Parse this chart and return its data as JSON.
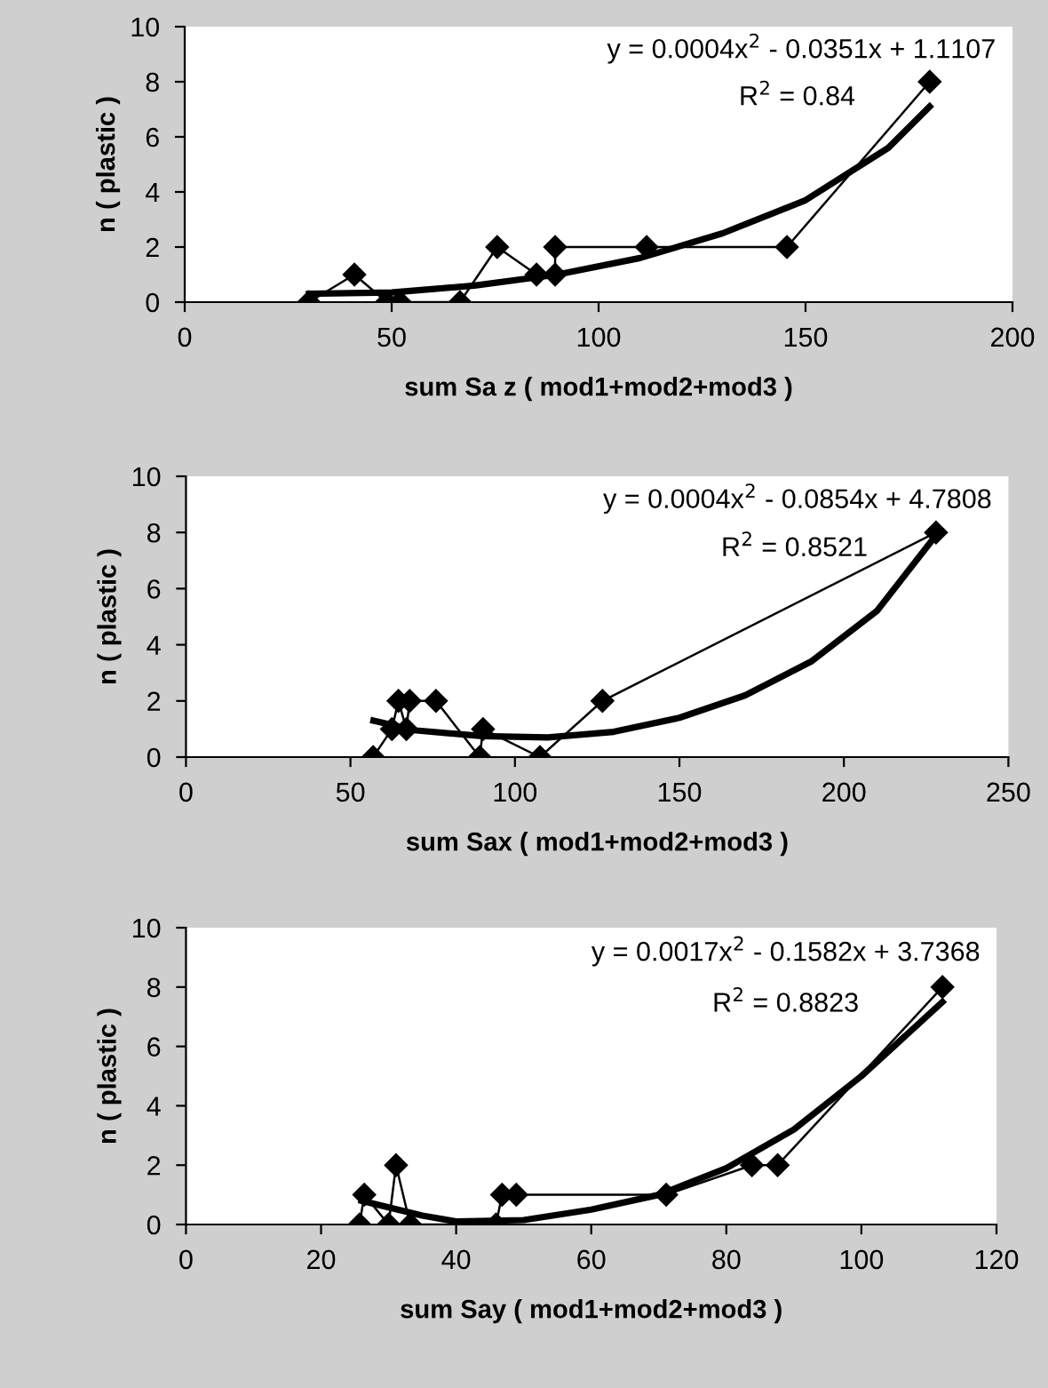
{
  "chart_data": [
    {
      "type": "line",
      "xlabel": "sum Sa z ( mod1+mod2+mod3 )",
      "ylabel": "n ( plastic )",
      "xlim": [
        0,
        200
      ],
      "xticks": [
        0,
        50,
        100,
        150,
        200
      ],
      "ylim": [
        0,
        10
      ],
      "yticks": [
        0,
        2,
        4,
        6,
        8,
        10
      ],
      "grid": false,
      "legend": false,
      "marker": "diamond",
      "line_style": "solid",
      "annotations": [
        "y = 0.0004x$^{2}$ - 0.0351x + 1.1107",
        "R$^{2}$ = 0.84"
      ],
      "series": [
        {
          "color": "#000000",
          "x": [
            30,
            41,
            48.8,
            52,
            66.5,
            75.5,
            85,
            89.5,
            89.5,
            111.6,
            145.5,
            180
          ],
          "values": [
            0,
            1,
            0,
            0,
            0,
            2,
            1,
            1,
            2,
            2,
            2,
            8
          ]
        },
        {
          "type": "line",
          "marker": "none",
          "color": "#000000",
          "x": [
            30,
            50,
            70,
            90,
            110,
            130,
            150,
            170,
            180
          ],
          "values": [
            0.3,
            0.35,
            0.6,
            1.0,
            1.6,
            2.5,
            3.7,
            5.6,
            7.1
          ]
        }
      ]
    },
    {
      "type": "line",
      "xlabel": "sum Sax ( mod1+mod2+mod3 )",
      "ylabel": "n ( plastic )",
      "xlim": [
        0,
        250
      ],
      "xticks": [
        0,
        50,
        100,
        150,
        200,
        250
      ],
      "ylim": [
        0,
        10
      ],
      "yticks": [
        0,
        2,
        4,
        6,
        8,
        10
      ],
      "grid": false,
      "legend": false,
      "marker": "diamond",
      "line_style": "solid",
      "annotations": [
        "y = 0.0004x$^{2}$ - 0.0854x + 4.7808",
        "R$^{2}$ = 0.8521"
      ],
      "series": [
        {
          "color": "#000000",
          "x": [
            56.9,
            62.6,
            64.6,
            67,
            68,
            76,
            89.3,
            90.3,
            107.6,
            126.6,
            228
          ],
          "values": [
            0,
            1,
            2,
            1,
            2,
            2,
            0,
            1,
            0,
            2,
            8
          ]
        },
        {
          "type": "line",
          "marker": "none",
          "color": "#000000",
          "x": [
            57,
            70,
            90,
            110,
            130,
            150,
            170,
            190,
            210,
            228
          ],
          "values": [
            1.3,
            0.95,
            0.75,
            0.7,
            0.9,
            1.4,
            2.2,
            3.4,
            5.2,
            7.9
          ]
        }
      ]
    },
    {
      "type": "line",
      "xlabel": "sum Say ( mod1+mod2+mod3 )",
      "ylabel": "n ( plastic )",
      "xlim": [
        0,
        120
      ],
      "xticks": [
        0,
        20,
        40,
        60,
        80,
        100,
        120
      ],
      "ylim": [
        0,
        10
      ],
      "yticks": [
        0,
        2,
        4,
        6,
        8,
        10
      ],
      "grid": false,
      "legend": false,
      "marker": "diamond",
      "line_style": "solid",
      "annotations": [
        "y = 0.0017x$^{2}$ - 0.1582x + 3.7368",
        "R$^{2}$ = 0.8823"
      ],
      "series": [
        {
          "color": "#000000",
          "x": [
            25.7,
            26.4,
            30,
            31.1,
            33.2,
            45.9,
            46.8,
            48.9,
            71.1,
            83.8,
            87.6,
            112
          ],
          "values": [
            0,
            1,
            0,
            2,
            0,
            0,
            1,
            1,
            1,
            2,
            2,
            8
          ]
        },
        {
          "type": "line",
          "marker": "none",
          "color": "#000000",
          "x": [
            26,
            35,
            40,
            50,
            60,
            70,
            80,
            90,
            100,
            112
          ],
          "values": [
            0.8,
            0.3,
            0.1,
            0.15,
            0.5,
            1.0,
            1.9,
            3.2,
            5.0,
            7.5
          ]
        }
      ]
    }
  ]
}
